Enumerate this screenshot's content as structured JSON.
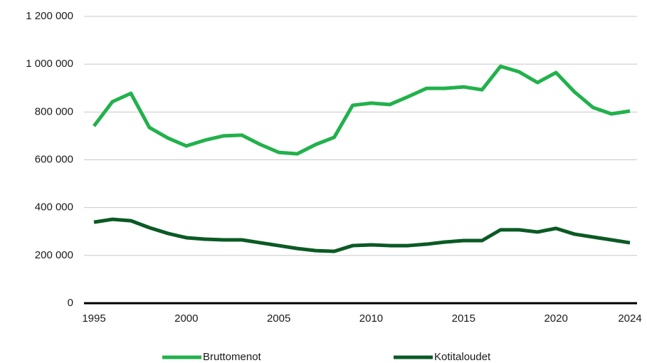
{
  "chart_data": {
    "type": "line",
    "x": [
      1995,
      1996,
      1997,
      1998,
      1999,
      2000,
      2001,
      2002,
      2003,
      2004,
      2005,
      2006,
      2007,
      2008,
      2009,
      2010,
      2011,
      2012,
      2013,
      2014,
      2015,
      2016,
      2017,
      2018,
      2019,
      2020,
      2021,
      2022,
      2023,
      2024
    ],
    "series": [
      {
        "name": "Bruttomenot",
        "color": "#22b14c",
        "values": [
          741000,
          843000,
          878000,
          735000,
          691000,
          658000,
          682000,
          700000,
          703000,
          664000,
          631000,
          625000,
          664000,
          694000,
          828000,
          837000,
          831000,
          864000,
          899000,
          899000,
          905000,
          893000,
          991000,
          968000,
          923000,
          965000,
          884000,
          819000,
          792000,
          804000
        ]
      },
      {
        "name": "Kotitaloudet",
        "color": "#0b5a24",
        "values": [
          339000,
          351000,
          345000,
          316000,
          292000,
          274000,
          268000,
          265000,
          265000,
          253000,
          241000,
          229000,
          220000,
          217000,
          241000,
          244000,
          241000,
          241000,
          247000,
          256000,
          262000,
          262000,
          307000,
          307000,
          298000,
          313000,
          289000,
          277000,
          265000,
          253000
        ]
      }
    ],
    "xlim": [
      1995,
      2024
    ],
    "xticks": [
      1995,
      2000,
      2005,
      2010,
      2015,
      2020,
      2024
    ],
    "ylim": [
      0,
      1200000
    ],
    "yticks": [
      0,
      {
        "value": 200000,
        "label": "200 000"
      },
      {
        "value": 400000,
        "label": "400 000"
      },
      {
        "value": 600000,
        "label": "600 000"
      },
      {
        "value": 800000,
        "label": "800 000"
      },
      {
        "value": 1000000,
        "label": "1 000 000"
      },
      {
        "value": 1200000,
        "label": "1 200 000"
      }
    ],
    "grid": true,
    "legend": "bottom"
  }
}
